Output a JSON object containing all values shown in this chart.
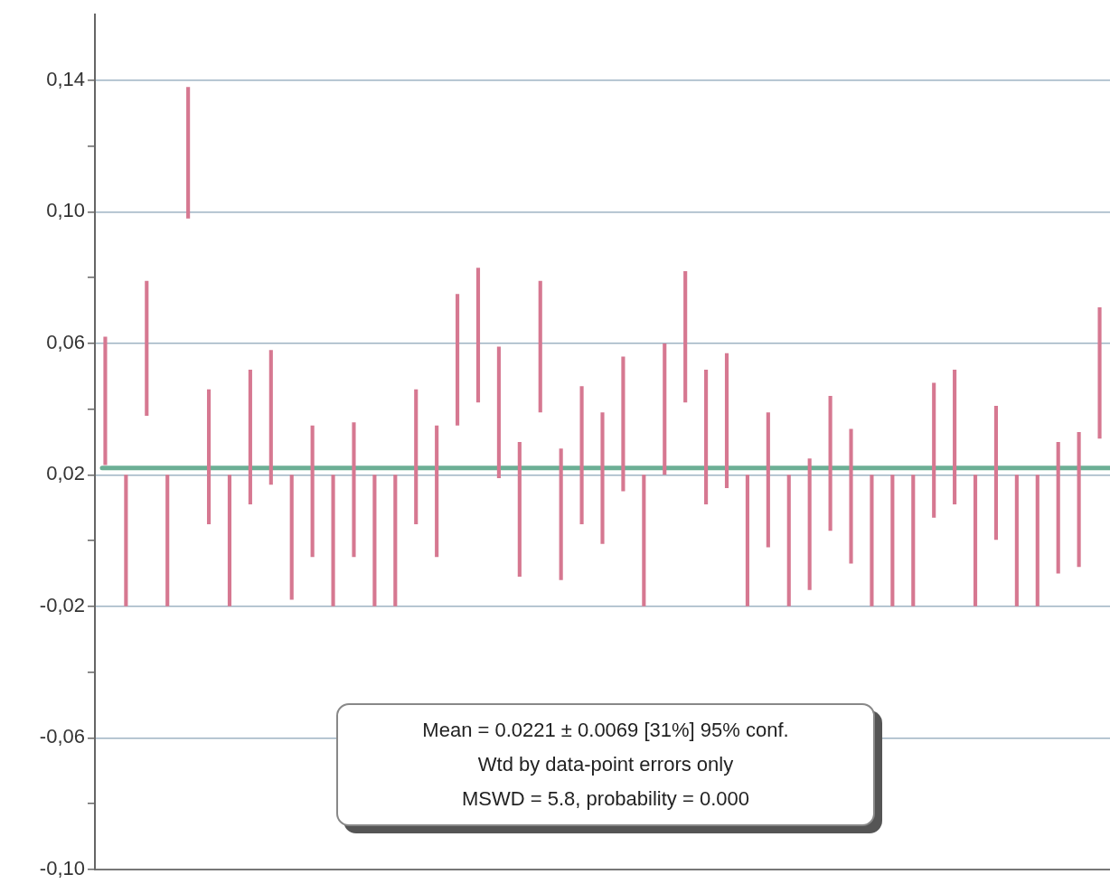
{
  "chart_data": {
    "type": "bar",
    "categories": [
      null,
      null,
      null,
      null,
      null,
      null,
      null,
      null,
      null,
      null,
      null,
      null,
      null,
      null,
      null,
      null,
      null,
      null,
      null,
      null,
      null,
      null,
      null,
      null,
      null,
      null,
      null,
      null,
      null,
      null,
      null,
      null,
      null,
      null,
      null,
      null,
      null,
      null,
      null,
      null,
      null,
      null,
      null,
      null,
      null,
      null,
      null,
      null,
      null
    ],
    "base": [
      0.023,
      -0.02,
      0.038,
      -0.02,
      0.098,
      0.005,
      -0.02,
      0.011,
      0.017,
      -0.018,
      -0.005,
      -0.02,
      -0.005,
      -0.02,
      -0.02,
      0.005,
      -0.005,
      0.035,
      0.042,
      0.019,
      -0.011,
      0.039,
      -0.012,
      0.005,
      -0.001,
      0.015,
      -0.02,
      0.02,
      0.042,
      0.011,
      0.016,
      -0.02,
      -0.002,
      -0.02,
      -0.015,
      0.003,
      -0.007,
      -0.02,
      -0.02,
      -0.02,
      0.007,
      0.011,
      -0.02,
      0.0,
      -0.02,
      -0.02,
      -0.01,
      -0.008,
      0.031
    ],
    "values": [
      0.039,
      0.04,
      0.041,
      0.04,
      0.04,
      0.041,
      0.04,
      0.041,
      0.041,
      0.038,
      0.04,
      0.04,
      0.041,
      0.04,
      0.04,
      0.041,
      0.04,
      0.04,
      0.041,
      0.04,
      0.041,
      0.04,
      0.04,
      0.042,
      0.04,
      0.041,
      0.04,
      0.04,
      0.04,
      0.041,
      0.041,
      0.04,
      0.041,
      0.04,
      0.04,
      0.041,
      0.041,
      0.04,
      0.04,
      0.04,
      0.041,
      0.041,
      0.04,
      0.041,
      0.04,
      0.04,
      0.04,
      0.041,
      0.04
    ],
    "color": "#d67891",
    "ylim": [
      -0.1,
      0.16
    ],
    "yticks": [
      {
        "value": -0.1,
        "label": "-0,10"
      },
      {
        "value": -0.08,
        "label": null
      },
      {
        "value": -0.06,
        "label": "-0,06"
      },
      {
        "value": -0.04,
        "label": null
      },
      {
        "value": -0.02,
        "label": "-0,02"
      },
      {
        "value": 0,
        "label": null
      },
      {
        "value": 0.02,
        "label": "0,02"
      },
      {
        "value": 0.04,
        "label": null
      },
      {
        "value": 0.06,
        "label": "0,06"
      },
      {
        "value": 0.08,
        "label": null
      },
      {
        "value": 0.1,
        "label": "0,10"
      },
      {
        "value": 0.12,
        "label": null
      },
      {
        "value": 0.14,
        "label": "0,14"
      }
    ],
    "grid": "y",
    "tick_labels": "y",
    "ref_lines": [
      {
        "axis": "y",
        "value": 0.0221,
        "color": "#6caf95"
      }
    ],
    "annotations": [
      "Mean = 0.0221 ± 0.0069  [31%]  95% conf.",
      "Wtd by data-point errors only",
      "MSWD = 5.8, probability = 0.000"
    ]
  }
}
